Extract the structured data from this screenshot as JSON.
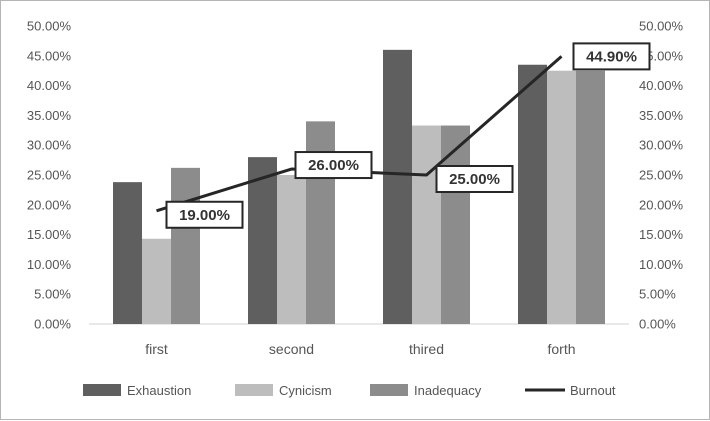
{
  "chart_data": {
    "type": "bar",
    "categories": [
      "first",
      "second",
      "thired",
      "forth"
    ],
    "series": [
      {
        "name": "Exhaustion",
        "type": "bar",
        "color": "#5f5f5f",
        "values": [
          0.238,
          0.28,
          0.46,
          0.435
        ]
      },
      {
        "name": "Cynicism",
        "type": "bar",
        "color": "#bdbdbd",
        "values": [
          0.143,
          0.25,
          0.333,
          0.425
        ]
      },
      {
        "name": "Inadequacy",
        "type": "bar",
        "color": "#8c8c8c",
        "values": [
          0.262,
          0.34,
          0.333,
          0.425
        ]
      },
      {
        "name": "Burnout",
        "type": "line",
        "color": "#262626",
        "values": [
          0.19,
          0.26,
          0.25,
          0.449
        ],
        "data_labels": [
          "19.00%",
          "26.00%",
          "25.00%",
          "44.90%"
        ]
      }
    ],
    "y_ticks": [
      "0.00%",
      "5.00%",
      "10.00%",
      "15.00%",
      "20.00%",
      "25.00%",
      "30.00%",
      "35.00%",
      "40.00%",
      "45.00%",
      "50.00%"
    ],
    "ylim": [
      0,
      0.5
    ],
    "secondary_axis": true,
    "grid": false,
    "legend_position": "bottom"
  }
}
